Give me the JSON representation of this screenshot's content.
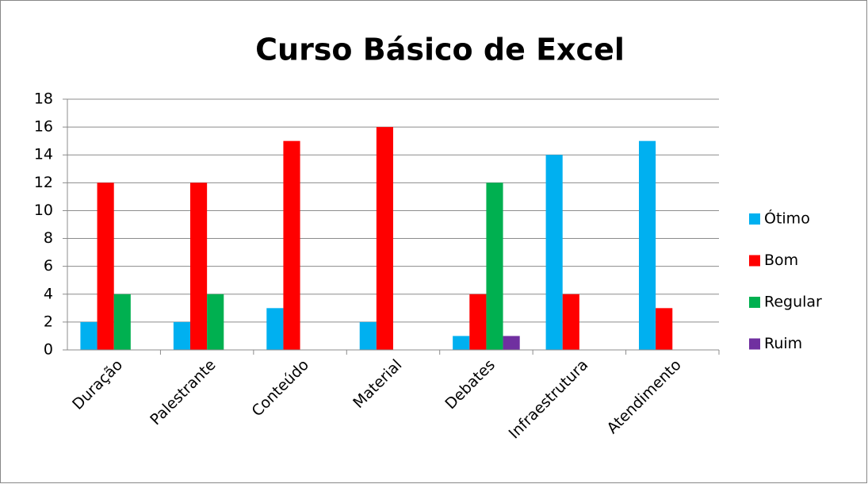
{
  "chart_data": {
    "type": "bar",
    "title": "Curso Básico de Excel",
    "categories": [
      "Duração",
      "Palestrante",
      "Conteúdo",
      "Material",
      "Debates",
      "Infraestrutura",
      "Atendimento"
    ],
    "series": [
      {
        "name": "Ótimo",
        "color": "#00b0f0",
        "values": [
          2,
          2,
          3,
          2,
          1,
          14,
          15
        ]
      },
      {
        "name": "Bom",
        "color": "#ff0000",
        "values": [
          12,
          12,
          15,
          16,
          4,
          4,
          3
        ]
      },
      {
        "name": "Regular",
        "color": "#00b050",
        "values": [
          4,
          4,
          0,
          0,
          12,
          0,
          0
        ]
      },
      {
        "name": "Ruim",
        "color": "#7030a0",
        "values": [
          0,
          0,
          0,
          0,
          1,
          0,
          0
        ]
      }
    ],
    "ylim": [
      0,
      18
    ],
    "yticks": [
      0,
      2,
      4,
      6,
      8,
      10,
      12,
      14,
      16,
      18
    ],
    "grid": true,
    "legend": "right"
  }
}
